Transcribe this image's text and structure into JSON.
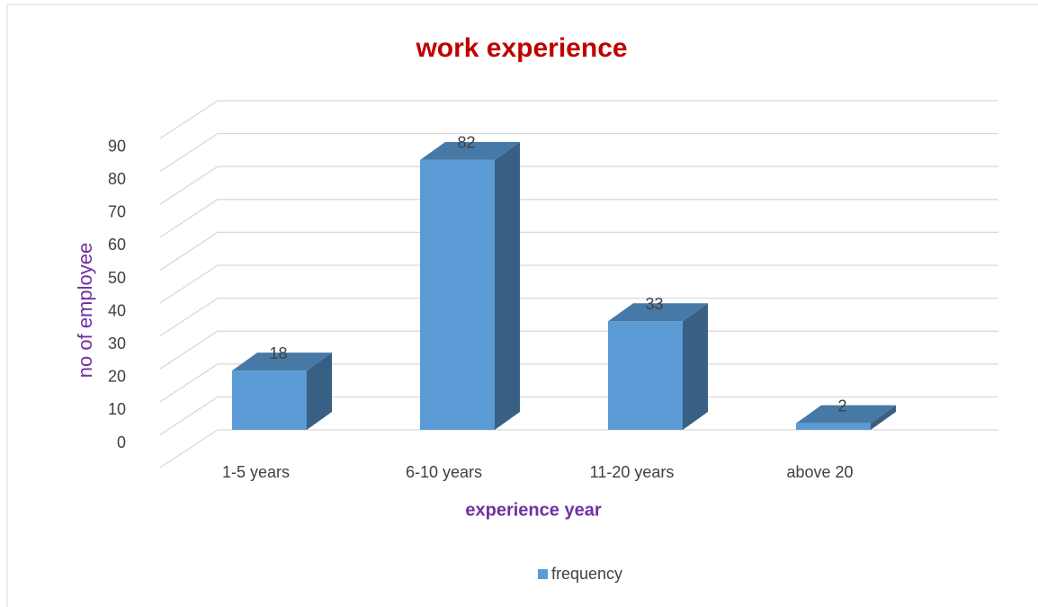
{
  "chart_data": {
    "type": "bar3d",
    "title": "work experience",
    "x_label": "experience year",
    "y_label": "no of employee",
    "categories": [
      "1-5 years",
      "6-10 years",
      "11-20 years",
      "above 20"
    ],
    "series": [
      {
        "name": "frequency",
        "color": "#5b9bd5",
        "values": [
          18,
          82,
          33,
          2
        ]
      }
    ],
    "ylim": [
      0,
      100
    ],
    "yticks": [
      0,
      10,
      20,
      30,
      40,
      50,
      60,
      70,
      80,
      90
    ],
    "grid": true,
    "legend": "bottom"
  }
}
